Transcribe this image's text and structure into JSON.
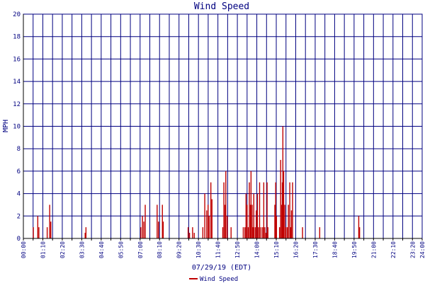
{
  "chart_data": {
    "type": "bar",
    "title": "Wind Speed",
    "ylabel": "MPH",
    "xlabel": "07/29/19 (EDT)",
    "ylim": [
      0,
      20
    ],
    "y_ticks": [
      0,
      2,
      4,
      6,
      8,
      10,
      12,
      14,
      16,
      18,
      20
    ],
    "xlim_minutes": [
      0,
      1440
    ],
    "x_tick_labels": [
      "00:00",
      "01:10",
      "02:20",
      "03:30",
      "04:40",
      "05:50",
      "07:00",
      "08:10",
      "09:20",
      "10:30",
      "11:40",
      "12:50",
      "14:00",
      "15:10",
      "16:20",
      "17:30",
      "18:40",
      "19:50",
      "21:00",
      "22:10",
      "23:20",
      "24:00"
    ],
    "grid": true,
    "legend": {
      "position": "bottom-center",
      "entries": [
        "Wind Speed"
      ]
    },
    "colors": {
      "series": "#c00000",
      "grid": "#000080",
      "text": "#000080",
      "axis": "#000000"
    },
    "series": [
      {
        "name": "Wind Speed",
        "x_unit": "minutes since 00:00",
        "points": [
          [
            36,
            1
          ],
          [
            52,
            2
          ],
          [
            56,
            1
          ],
          [
            86,
            1
          ],
          [
            95,
            3
          ],
          [
            99,
            1.5
          ],
          [
            223,
            0.5
          ],
          [
            226,
            1
          ],
          [
            424,
            1
          ],
          [
            430,
            2
          ],
          [
            435,
            1.5
          ],
          [
            440,
            3
          ],
          [
            483,
            3
          ],
          [
            488,
            1.5
          ],
          [
            502,
            3
          ],
          [
            505,
            1.5
          ],
          [
            595,
            1
          ],
          [
            600,
            0.5
          ],
          [
            611,
            1
          ],
          [
            617,
            0.5
          ],
          [
            648,
            1
          ],
          [
            655,
            4
          ],
          [
            662,
            2.5
          ],
          [
            667,
            3
          ],
          [
            671,
            2
          ],
          [
            677,
            5
          ],
          [
            681,
            3.5
          ],
          [
            720,
            1
          ],
          [
            724,
            5
          ],
          [
            728,
            3
          ],
          [
            731,
            6
          ],
          [
            736,
            2
          ],
          [
            750,
            1
          ],
          [
            794,
            1
          ],
          [
            800,
            1
          ],
          [
            804,
            4
          ],
          [
            808,
            3
          ],
          [
            812,
            1
          ],
          [
            816,
            5
          ],
          [
            820,
            3
          ],
          [
            822,
            6
          ],
          [
            826,
            3
          ],
          [
            829,
            1
          ],
          [
            832,
            4
          ],
          [
            837,
            1
          ],
          [
            841,
            2.5
          ],
          [
            845,
            4
          ],
          [
            849,
            1
          ],
          [
            853,
            5
          ],
          [
            858,
            1
          ],
          [
            864,
            1
          ],
          [
            868,
            5
          ],
          [
            872,
            1
          ],
          [
            876,
            0.5
          ],
          [
            880,
            5
          ],
          [
            883,
            1
          ],
          [
            908,
            3
          ],
          [
            911,
            5
          ],
          [
            914,
            2
          ],
          [
            925,
            1
          ],
          [
            929,
            7
          ],
          [
            933,
            3
          ],
          [
            935,
            5
          ],
          [
            937,
            10
          ],
          [
            940,
            6
          ],
          [
            944,
            3
          ],
          [
            948,
            1
          ],
          [
            953,
            1
          ],
          [
            957,
            3
          ],
          [
            962,
            5
          ],
          [
            965,
            1
          ],
          [
            968,
            2.5
          ],
          [
            972,
            5
          ],
          [
            1008,
            1
          ],
          [
            1070,
            1
          ],
          [
            1211,
            2
          ],
          [
            1214,
            1
          ]
        ]
      }
    ]
  }
}
